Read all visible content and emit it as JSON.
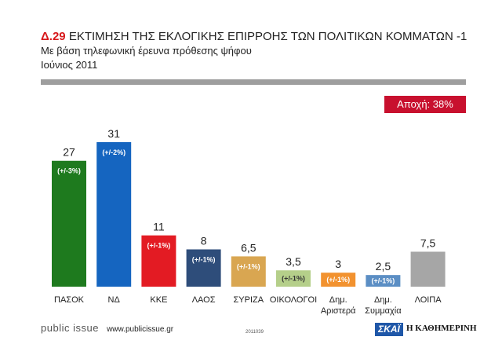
{
  "header": {
    "code": "Δ.29",
    "title": "ΕΚΤΙΜΗΣΗ ΤΗΣ ΕΚΛΟΓΙΚΗΣ ΕΠΙΡΡΟΗΣ ΤΩΝ ΠΟΛΙΤΙΚΩΝ ΚΟΜΜΑΤΩΝ -1",
    "subtitle": "Με βάση τηλεφωνική έρευνα πρόθεσης ψήφου",
    "date": "Ιούνιος 2011"
  },
  "abstention_label": "Αποχή: 38%",
  "chart_data": {
    "type": "bar",
    "title": "ΕΚΤΙΜΗΣΗ ΤΗΣ ΕΚΛΟΓΙΚΗΣ ΕΠΙΡΡΟΗΣ ΤΩΝ ΠΟΛΙΤΙΚΩΝ ΚΟΜΜΑΤΩΝ -1",
    "categories": [
      "ΠΑΣΟΚ",
      "ΝΔ",
      "ΚΚΕ",
      "ΛΑΟΣ",
      "ΣΥΡΙΖΑ",
      "ΟΙΚΟΛΟΓΟΙ",
      "Δημ. Αριστερά",
      "Δημ. Συμμαχία",
      "ΛΟΙΠΑ"
    ],
    "category_lines": [
      [
        "ΠΑΣΟΚ"
      ],
      [
        "ΝΔ"
      ],
      [
        "ΚΚΕ"
      ],
      [
        "ΛΑΟΣ"
      ],
      [
        "ΣΥΡΙΖΑ"
      ],
      [
        "ΟΙΚΟΛΟΓΟΙ"
      ],
      [
        "Δημ.",
        "Αριστερά"
      ],
      [
        "Δημ.",
        "Συμμαχία"
      ],
      [
        "ΛΟΙΠΑ"
      ]
    ],
    "values": [
      27,
      31,
      11,
      8,
      6.5,
      3.5,
      3,
      2.5,
      7.5
    ],
    "value_labels": [
      "27",
      "31",
      "11",
      "8",
      "6,5",
      "3,5",
      "3",
      "2,5",
      "7,5"
    ],
    "margins": [
      "(+/-3%)",
      "(+/-2%)",
      "(+/-1%)",
      "(+/-1%)",
      "(+/-1%)",
      "(+/-1%)",
      "(+/-1%)",
      "(+/-1%)",
      ""
    ],
    "colors": [
      "#1e7a1e",
      "#1565c0",
      "#e31b23",
      "#2e4d7a",
      "#d9a651",
      "#b5cf8a",
      "#f2922f",
      "#5b8ec4",
      "#a6a6a6"
    ],
    "margin_text_colors": [
      "#ffffff",
      "#ffffff",
      "#ffffff",
      "#ffffff",
      "#ffffff",
      "#333333",
      "#ffffff",
      "#ffffff",
      "#ffffff"
    ],
    "ylim": [
      0,
      31
    ],
    "xlabel": "",
    "ylabel": ""
  },
  "footer": {
    "brand": "public issue",
    "url": "www.publicissue.gr",
    "code": "2011039",
    "logo_left": "ΣΚΑΪ",
    "logo_right": "Η ΚΑΘΗΜΕΡΙΝΗ"
  }
}
